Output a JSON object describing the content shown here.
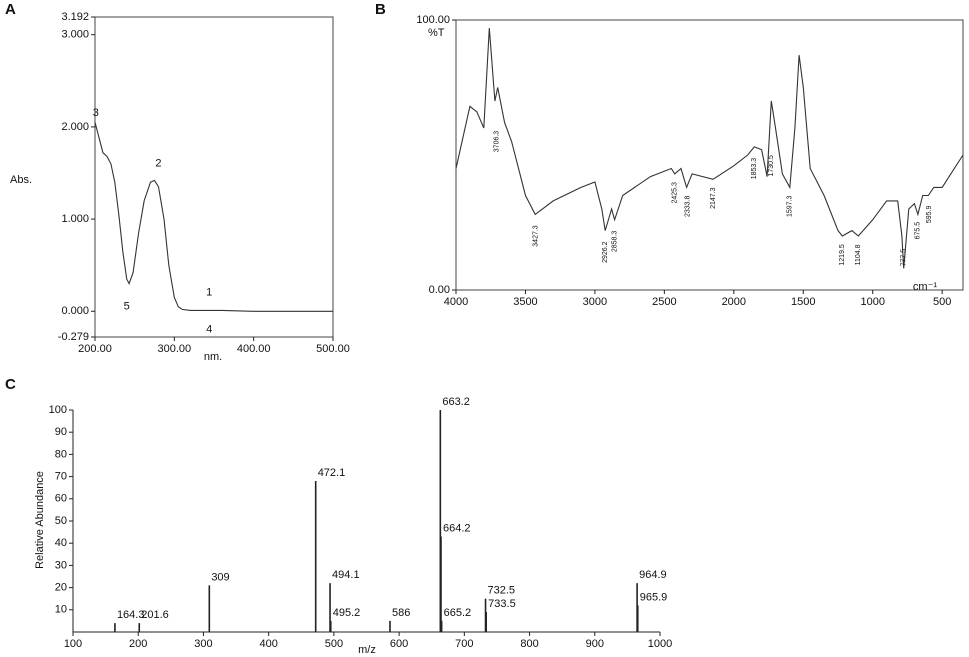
{
  "chart_data": [
    {
      "type": "line",
      "label": "A",
      "ylabel": "Abs.",
      "xlabel": "nm.",
      "xlim": [
        200,
        500
      ],
      "ylim": [
        -0.279,
        3.192
      ],
      "xticks": [
        {
          "value": 200,
          "label": "200.00"
        },
        {
          "value": 300,
          "label": "300.00"
        },
        {
          "value": 400,
          "label": "400.00"
        },
        {
          "value": 500,
          "label": "500.00"
        }
      ],
      "yticks": [
        {
          "value": -0.279,
          "label": "-0.279"
        },
        {
          "value": 0,
          "label": "0.000"
        },
        {
          "value": 1,
          "label": "1.000"
        },
        {
          "value": 2,
          "label": "2.000"
        },
        {
          "value": 3,
          "label": "3.000"
        },
        {
          "value": 3.192,
          "label": "3.192"
        }
      ],
      "x": [
        200,
        203,
        206,
        210,
        215,
        220,
        225,
        230,
        235,
        240,
        243,
        248,
        255,
        262,
        270,
        275,
        280,
        287,
        293,
        300,
        305,
        310,
        320,
        340,
        360,
        400,
        450,
        500
      ],
      "values": [
        2.05,
        1.95,
        1.85,
        1.72,
        1.68,
        1.6,
        1.4,
        1.05,
        0.65,
        0.35,
        0.3,
        0.42,
        0.85,
        1.2,
        1.4,
        1.42,
        1.35,
        1.0,
        0.5,
        0.15,
        0.05,
        0.02,
        0.01,
        0.01,
        0.01,
        0,
        0,
        0
      ],
      "color": "#333333",
      "annotations": [
        {
          "text": "3",
          "x": 201,
          "y": 2.15
        },
        {
          "text": "2",
          "x": 280,
          "y": 1.6
        },
        {
          "text": "5",
          "x": 240,
          "y": 0.05
        },
        {
          "text": "1",
          "x": 344,
          "y": 0.2
        },
        {
          "text": "4",
          "x": 344,
          "y": -0.2
        }
      ]
    },
    {
      "type": "line",
      "label": "B",
      "ylabel": "%T",
      "xlabel": "cm⁻¹",
      "xlim": [
        4000,
        350
      ],
      "ylim": [
        0,
        100
      ],
      "xticks": [
        4000,
        3500,
        3000,
        2500,
        2000,
        1500,
        1000,
        500
      ],
      "yticks": [
        {
          "value": 0,
          "label": "0.00"
        },
        {
          "value": 100,
          "label": "100.00"
        }
      ],
      "x": [
        4000,
        3900,
        3850,
        3800,
        3760,
        3720,
        3700,
        3650,
        3600,
        3500,
        3430,
        3300,
        3100,
        3000,
        2950,
        2926,
        2880,
        2858,
        2800,
        2600,
        2450,
        2425,
        2380,
        2340,
        2300,
        2150,
        2000,
        1900,
        1853,
        1800,
        1760,
        1730,
        1700,
        1650,
        1597,
        1560,
        1530,
        1500,
        1450,
        1350,
        1250,
        1219,
        1150,
        1104,
        1000,
        900,
        820,
        790,
        777,
        740,
        700,
        675,
        640,
        600,
        560,
        500,
        450,
        350
      ],
      "values": [
        45,
        68,
        66,
        60,
        97,
        70,
        75,
        62,
        55,
        35,
        28,
        33,
        38,
        40,
        30,
        22,
        30,
        26,
        35,
        42,
        45,
        43,
        45,
        38,
        43,
        41,
        46,
        50,
        53,
        52,
        42,
        70,
        60,
        43,
        38,
        60,
        87,
        75,
        45,
        35,
        22,
        20,
        22,
        20,
        26,
        33,
        33,
        20,
        8,
        30,
        32,
        28,
        35,
        35,
        38,
        38,
        42,
        50
      ],
      "color": "#333333",
      "annotations": [
        {
          "text": "3706.3",
          "x": 3706,
          "y": 55
        },
        {
          "text": "3427.3",
          "x": 3427,
          "y": 20
        },
        {
          "text": "2926.2",
          "x": 2926,
          "y": 14
        },
        {
          "text": "2858.3",
          "x": 2858,
          "y": 18
        },
        {
          "text": "2425.3",
          "x": 2425,
          "y": 36
        },
        {
          "text": "2333.8",
          "x": 2333,
          "y": 31
        },
        {
          "text": "2147.3",
          "x": 2147,
          "y": 34
        },
        {
          "text": "1853.3",
          "x": 1853,
          "y": 45
        },
        {
          "text": "1730.5",
          "x": 1730,
          "y": 46
        },
        {
          "text": "1597.3",
          "x": 1597,
          "y": 31
        },
        {
          "text": "1219.5",
          "x": 1219,
          "y": 13
        },
        {
          "text": "1104.8",
          "x": 1104,
          "y": 13
        },
        {
          "text": "777.5",
          "x": 777,
          "y": 12
        },
        {
          "text": "675.5",
          "x": 675,
          "y": 22
        },
        {
          "text": "595.9",
          "x": 595,
          "y": 28
        }
      ]
    },
    {
      "type": "stem",
      "label": "C",
      "ylabel": "Relative Abundance",
      "xlabel": "m/z",
      "xlim": [
        100,
        1000
      ],
      "ylim": [
        0,
        100
      ],
      "xticks": [
        100,
        200,
        300,
        400,
        500,
        600,
        700,
        800,
        900,
        1000
      ],
      "yticks": [
        10,
        20,
        30,
        40,
        50,
        60,
        70,
        80,
        90,
        100
      ],
      "x": [
        164.3,
        201.6,
        309.0,
        472.1,
        494.1,
        495.2,
        586.0,
        663.2,
        664.2,
        665.2,
        732.5,
        733.5,
        964.9,
        965.9
      ],
      "values": [
        4,
        4,
        21,
        68,
        22,
        5,
        5,
        100,
        43,
        5,
        15,
        9,
        22,
        12
      ],
      "color": "#222222"
    }
  ]
}
